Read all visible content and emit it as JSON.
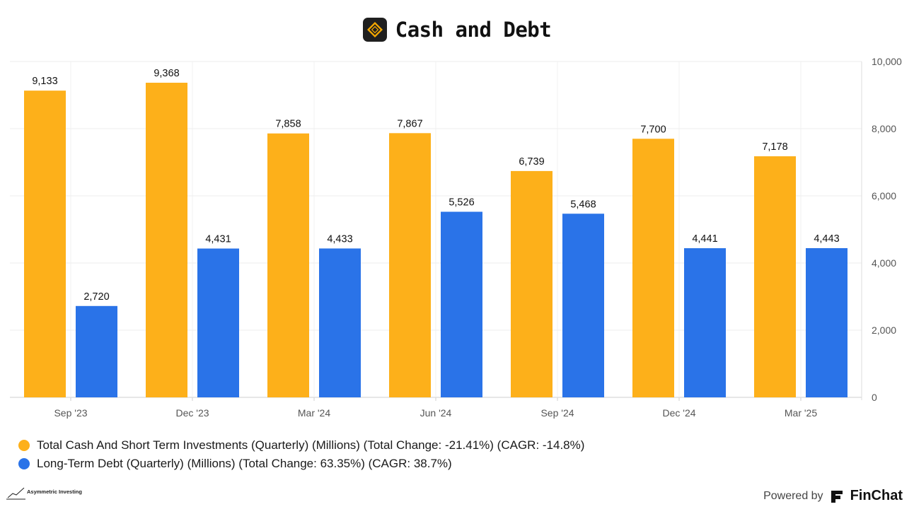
{
  "header": {
    "title": "Cash and Debt",
    "logo_icon": "diamond-logo-icon"
  },
  "chart_data": {
    "type": "bar",
    "title": "Cash and Debt",
    "categories": [
      "Sep '23",
      "Dec '23",
      "Mar '24",
      "Jun '24",
      "Sep '24",
      "Dec '24",
      "Mar '25"
    ],
    "series": [
      {
        "name": "Total Cash And Short Term Investments (Quarterly) (Millions) (Total Change: -21.41%) (CAGR: -14.8%)",
        "color": "#FDB01A",
        "values": [
          9133,
          9368,
          7858,
          7867,
          6739,
          7700,
          7178
        ],
        "labels": [
          "9,133",
          "9,368",
          "7,858",
          "7,867",
          "6,739",
          "7,700",
          "7,178"
        ]
      },
      {
        "name": "Long-Term Debt (Quarterly) (Millions) (Total Change: 63.35%) (CAGR: 38.7%)",
        "color": "#2A73E8",
        "values": [
          2720,
          4431,
          4433,
          5526,
          5468,
          4441,
          4443
        ],
        "labels": [
          "2,720",
          "4,431",
          "4,433",
          "5,526",
          "5,468",
          "4,441",
          "4,443"
        ]
      }
    ],
    "y_axis": {
      "position": "right",
      "ylim": [
        0,
        10000
      ],
      "ticks": [
        0,
        2000,
        4000,
        6000,
        8000,
        10000
      ],
      "tick_labels": [
        "0",
        "2,000",
        "4,000",
        "6,000",
        "8,000",
        "10,000"
      ]
    },
    "grid": true,
    "legend_position": "bottom-left"
  },
  "footer": {
    "left_brand": "Asymmetric Investing",
    "powered_by": "Powered by",
    "product": "FinChat"
  }
}
